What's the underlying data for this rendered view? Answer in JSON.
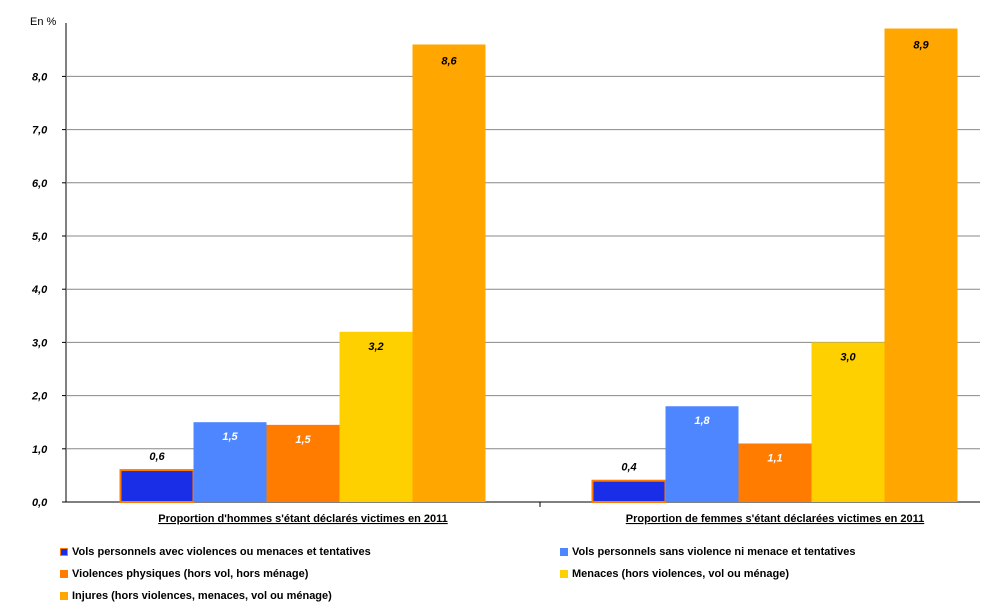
{
  "chart_data": {
    "type": "bar",
    "unit_label": "En %",
    "categories": [
      "Proportion d'hommes s'étant déclarés victimes en 2011",
      "Proportion de femmes s'étant déclarées victimes en 2011"
    ],
    "series": [
      {
        "name": "Vols personnels avec violences ou menaces et tentatives",
        "color": "#1a2ee8",
        "values": [
          0.6,
          0.4
        ],
        "labels": [
          "0,6",
          "0,4"
        ]
      },
      {
        "name": "Vols personnels sans violence ni menace et tentatives",
        "color": "#4d86ff",
        "values": [
          1.5,
          1.8
        ],
        "labels": [
          "1,5",
          "1,8"
        ]
      },
      {
        "name": "Violences physiques (hors vol, hors ménage)",
        "color": "#ff7c00",
        "values": [
          1.45,
          1.1
        ],
        "labels": [
          "1,5",
          "1,1"
        ]
      },
      {
        "name": "Menaces (hors violences, vol ou ménage)",
        "color": "#ffd000",
        "values": [
          3.2,
          3.0
        ],
        "labels": [
          "3,2",
          "3,0"
        ]
      },
      {
        "name": "Injures (hors violences, menaces, vol ou ménage)",
        "color": "#ffa600",
        "values": [
          8.6,
          8.9
        ],
        "labels": [
          "8,6",
          "8,9"
        ]
      }
    ],
    "yticks": [
      0,
      1,
      2,
      3,
      4,
      5,
      6,
      7,
      8
    ],
    "ytick_labels": [
      "0,0",
      "1,0",
      "2,0",
      "3,0",
      "4,0",
      "5,0",
      "6,0",
      "7,0",
      "8,0"
    ],
    "ylim": [
      0,
      9
    ],
    "grid": true,
    "legend_position": "bottom"
  }
}
